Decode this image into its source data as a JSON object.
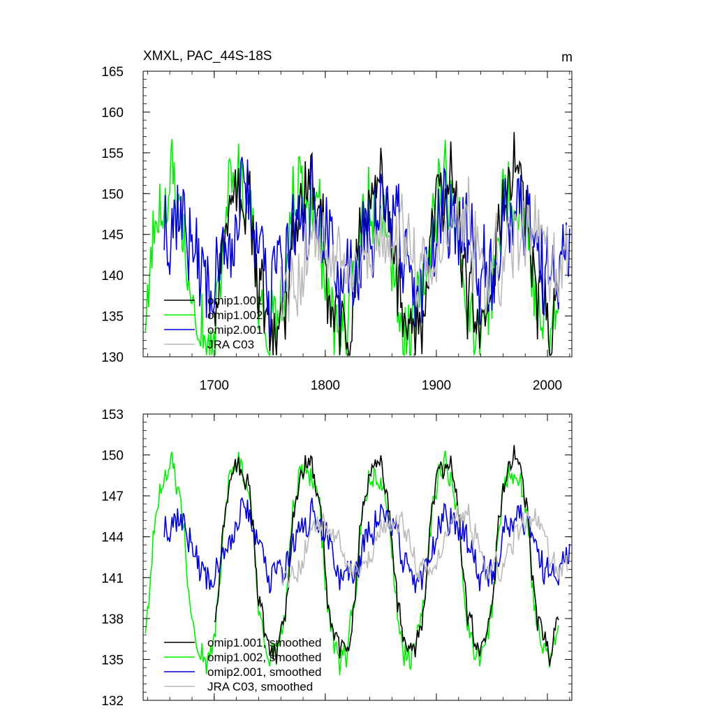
{
  "chart_data": [
    {
      "type": "line",
      "title": "XMXL, PAC_44S-18S",
      "units": "m",
      "xlim": [
        1636,
        2022
      ],
      "ylim": [
        130,
        165
      ],
      "yticks": [
        130,
        135,
        140,
        145,
        150,
        155,
        160,
        165
      ],
      "xticks": [
        1700,
        1800,
        1900,
        2000
      ],
      "legend_position": "bottom-left",
      "legend": [
        {
          "label": "omip1.001",
          "color": "#000000"
        },
        {
          "label": "omip1.002",
          "color": "#00ee00"
        },
        {
          "label": "omip2.001",
          "color": "#0000dd"
        },
        {
          "label": "JRA C03",
          "color": "#bbbbbb"
        }
      ],
      "series": [
        {
          "name": "omip1.001",
          "start": 1700,
          "end": 2010,
          "gen": {
            "mean": 142.4,
            "cycle": 62,
            "phase": 1706,
            "amp": 8.5,
            "noise": 5.0,
            "seed": 11
          }
        },
        {
          "name": "omip1.002",
          "start": 1638,
          "end": 2010,
          "gen": {
            "mean": 142.0,
            "cycle": 62,
            "phase": 1706,
            "amp": 9.0,
            "noise": 5.5,
            "seed": 23
          }
        },
        {
          "name": "omip2.001",
          "start": 1655,
          "end": 2020,
          "gen": {
            "mean": 143.8,
            "cycle": 62,
            "phase": 1680,
            "amp": -4.5,
            "noise": 6.0,
            "seed": 37
          }
        },
        {
          "name": "JRA C03",
          "start": 1760,
          "end": 2018,
          "gen": {
            "mean": 143.0,
            "cycle": 62,
            "phase": 1752,
            "amp": -3.0,
            "noise": 5.0,
            "seed": 53
          }
        }
      ]
    },
    {
      "type": "line",
      "title": "",
      "units": "",
      "xlim": [
        1636,
        2022
      ],
      "ylim": [
        132,
        153
      ],
      "yticks": [
        132,
        135,
        138,
        141,
        144,
        147,
        150,
        153
      ],
      "xticks": [
        1700,
        1800,
        1900,
        2000
      ],
      "legend_position": "bottom-left",
      "legend": [
        {
          "label": "omip1.001, smoothed",
          "color": "#000000"
        },
        {
          "label": "omip1.002, smoothed",
          "color": "#00ee00"
        },
        {
          "label": "omip2.001, smoothed",
          "color": "#0000dd"
        },
        {
          "label": "JRA C03, smoothed",
          "color": "#bbbbbb"
        }
      ],
      "series": [
        {
          "name": "omip1.001, smoothed",
          "start": 1700,
          "end": 2010,
          "gen": {
            "mean": 142.6,
            "cycle": 62,
            "phase": 1706,
            "amp": 6.8,
            "noise": 1.0,
            "seed": 11
          }
        },
        {
          "name": "omip1.002, smoothed",
          "start": 1638,
          "end": 2010,
          "gen": {
            "mean": 142.2,
            "cycle": 62,
            "phase": 1706,
            "amp": 7.0,
            "noise": 1.1,
            "seed": 23
          }
        },
        {
          "name": "omip2.001, smoothed",
          "start": 1655,
          "end": 2020,
          "gen": {
            "mean": 143.3,
            "cycle": 62,
            "phase": 1680,
            "amp": -2.2,
            "noise": 1.3,
            "seed": 37
          }
        },
        {
          "name": "JRA C03, smoothed",
          "start": 1760,
          "end": 2018,
          "gen": {
            "mean": 143.4,
            "cycle": 62,
            "phase": 1752,
            "amp": -2.0,
            "noise": 1.0,
            "seed": 53
          }
        }
      ]
    }
  ]
}
